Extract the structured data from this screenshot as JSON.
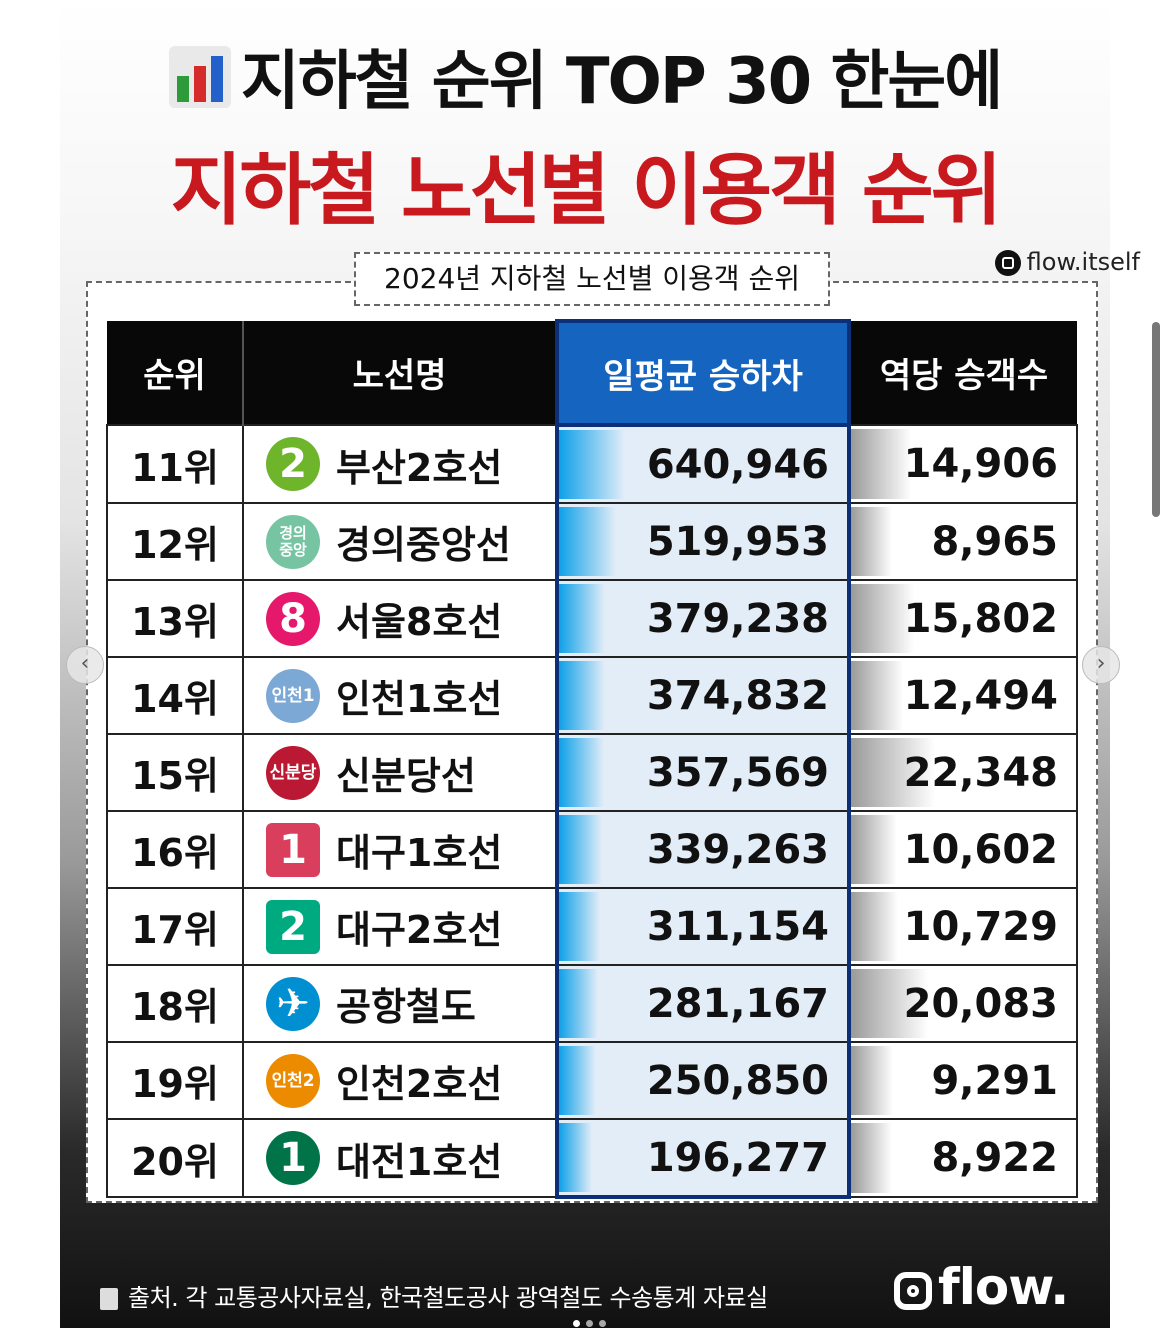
{
  "header": {
    "title_line1": "지하철 순위 TOP 30 한눈에",
    "title_line2": "지하철 노선별 이용객 순위",
    "subtitle": "2024년 지하철 노선별 이용객 순위",
    "handle": "flow.itself"
  },
  "table": {
    "columns": [
      "순위",
      "노선명",
      "일평균 승하차",
      "역당 승객수"
    ],
    "rows": [
      {
        "rank": "11위",
        "badge": "2",
        "line": "부산2호선",
        "daily": "640,946",
        "per_station": "14,906",
        "color": "#6fb52c",
        "daily_value": 640946,
        "station_value": 14906
      },
      {
        "rank": "12위",
        "badge": "경의\n중앙",
        "line": "경의중앙선",
        "daily": "519,953",
        "per_station": "8,965",
        "color": "#77c4a3",
        "daily_value": 519953,
        "station_value": 8965
      },
      {
        "rank": "13위",
        "badge": "8",
        "line": "서울8호선",
        "daily": "379,238",
        "per_station": "15,802",
        "color": "#e6186c",
        "daily_value": 379238,
        "station_value": 15802
      },
      {
        "rank": "14위",
        "badge": "인천1",
        "line": "인천1호선",
        "daily": "374,832",
        "per_station": "12,494",
        "color": "#7ca8d5",
        "daily_value": 374832,
        "station_value": 12494
      },
      {
        "rank": "15위",
        "badge": "신분당",
        "line": "신분당선",
        "daily": "357,569",
        "per_station": "22,348",
        "color": "#bb1834",
        "daily_value": 357569,
        "station_value": 22348
      },
      {
        "rank": "16위",
        "badge": "1",
        "line": "대구1호선",
        "daily": "339,263",
        "per_station": "10,602",
        "color": "#d93f5c",
        "daily_value": 339263,
        "station_value": 10602
      },
      {
        "rank": "17위",
        "badge": "2",
        "line": "대구2호선",
        "daily": "311,154",
        "per_station": "10,729",
        "color": "#00aa80",
        "daily_value": 311154,
        "station_value": 10729
      },
      {
        "rank": "18위",
        "badge": "✈",
        "line": "공항철도",
        "daily": "281,167",
        "per_station": "20,083",
        "color": "#0090d2",
        "daily_value": 281167,
        "station_value": 20083
      },
      {
        "rank": "19위",
        "badge": "인천2",
        "line": "인천2호선",
        "daily": "250,850",
        "per_station": "9,291",
        "color": "#ed8b00",
        "daily_value": 250850,
        "station_value": 9291
      },
      {
        "rank": "20위",
        "badge": "1",
        "line": "대전1호선",
        "daily": "196,277",
        "per_station": "8,922",
        "color": "#007448",
        "daily_value": 196277,
        "station_value": 8922
      }
    ]
  },
  "footer": {
    "source": "출처. 각 교통공사자료실, 한국철도공사 광역철도 수송통계 자료실",
    "logo": "flow."
  },
  "colors": {
    "title_red": "#c8191f",
    "highlight_blue": "#1565c0",
    "header_black": "#080808"
  }
}
